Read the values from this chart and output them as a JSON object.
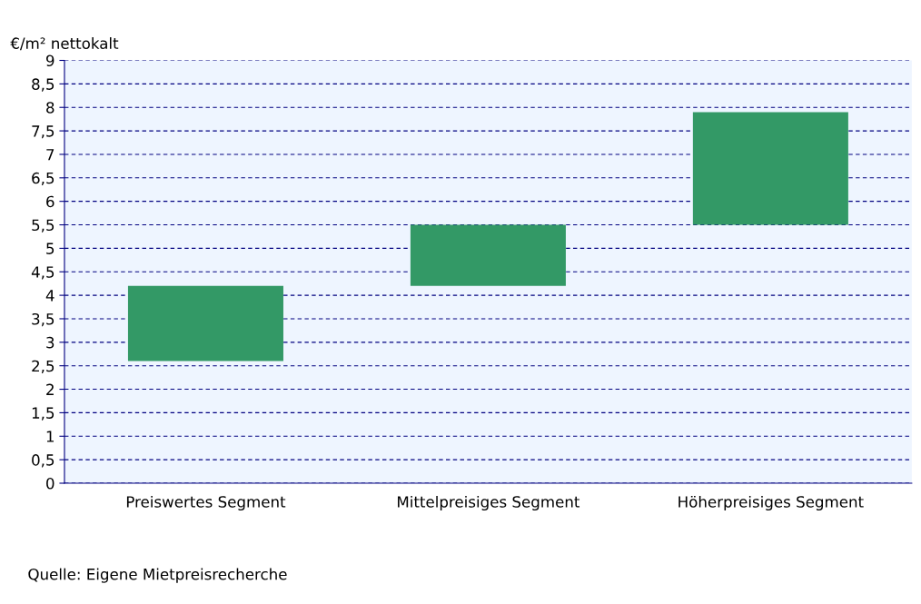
{
  "chart_data": {
    "type": "bar",
    "ylabel": "€/m² nettokalt",
    "categories": [
      "Preiswertes Segment",
      "Mittelpreisiges Segment",
      "Höherpreisiges Segment"
    ],
    "base": [
      2.6,
      4.2,
      5.5
    ],
    "values": [
      1.6,
      1.3,
      2.4
    ],
    "color": "#339966",
    "ylim": [
      0,
      9
    ],
    "yticks": [
      0,
      {
        "value": 0.5,
        "label": "0,5"
      },
      1,
      {
        "value": 1.5,
        "label": "1,5"
      },
      2,
      {
        "value": 2.5,
        "label": "2,5"
      },
      3,
      {
        "value": 3.5,
        "label": "3,5"
      },
      4,
      {
        "value": 4.5,
        "label": "4,5"
      },
      5,
      {
        "value": 5.5,
        "label": "5,5"
      },
      6,
      {
        "value": 6.5,
        "label": "6,5"
      },
      7,
      {
        "value": 7.5,
        "label": "7,5"
      },
      8,
      {
        "value": 8.5,
        "label": "8,5"
      },
      9
    ],
    "grid": "y",
    "annotations": [
      "Quelle: Eigene Mietpreisrecherche"
    ]
  }
}
